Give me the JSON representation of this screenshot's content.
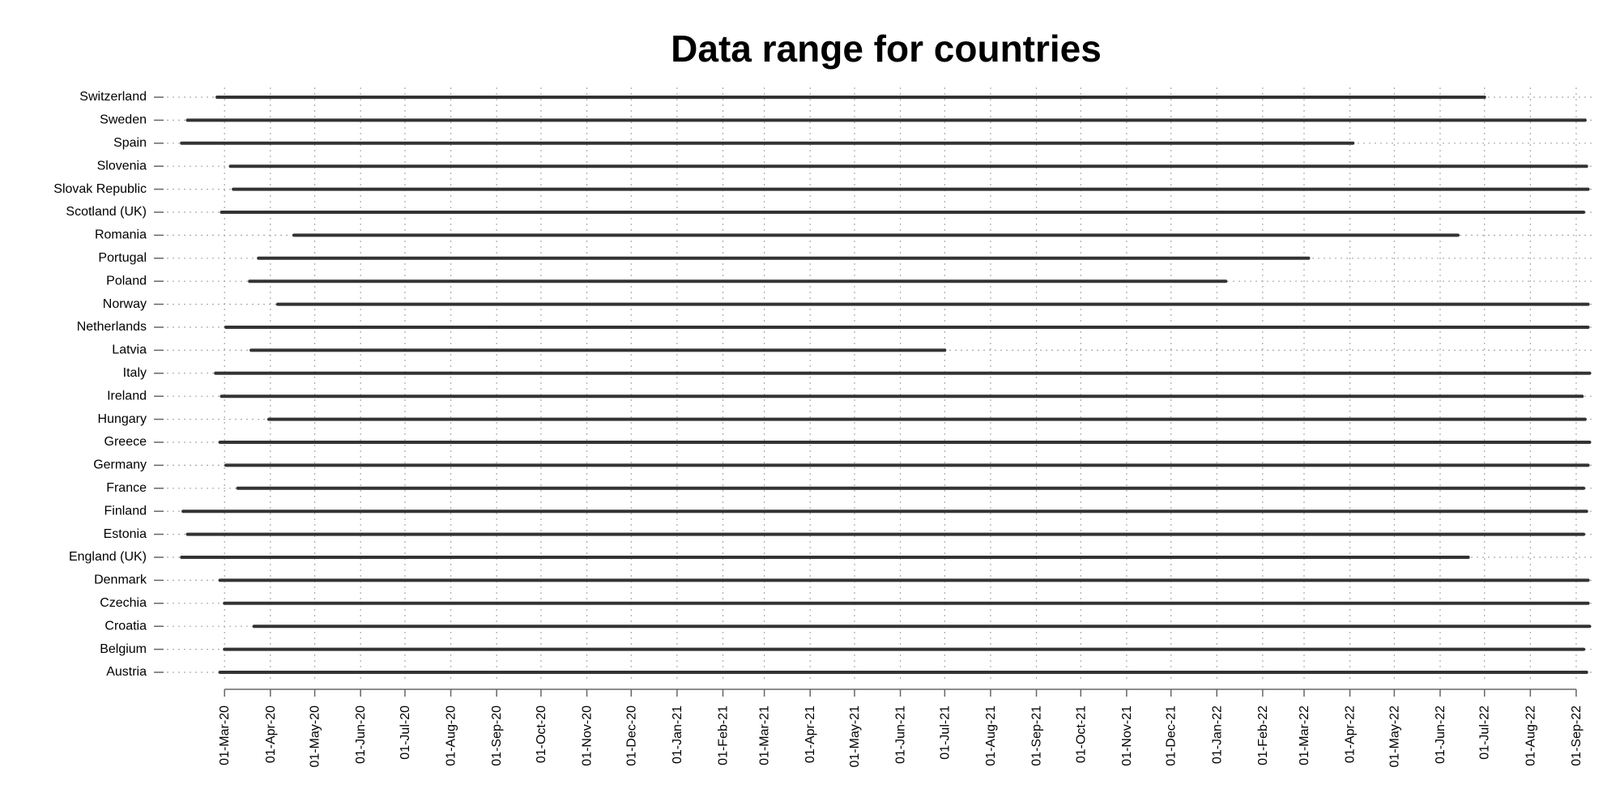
{
  "chart_data": {
    "type": "range",
    "title": "Data range for countries",
    "color": "#333333",
    "grid": true,
    "categories": [
      "Switzerland",
      "Sweden",
      "Spain",
      "Slovenia",
      "Slovak Republic",
      "Scotland (UK)",
      "Romania",
      "Portugal",
      "Poland",
      "Norway",
      "Netherlands",
      "Latvia",
      "Italy",
      "Ireland",
      "Hungary",
      "Greece",
      "Germany",
      "France",
      "Finland",
      "Estonia",
      "England (UK)",
      "Denmark",
      "Czechia",
      "Croatia",
      "Belgium",
      "Austria"
    ],
    "starts": [
      "2020-02-25",
      "2020-02-05",
      "2020-02-01",
      "2020-03-05",
      "2020-03-07",
      "2020-02-28",
      "2020-04-17",
      "2020-03-24",
      "2020-03-18",
      "2020-04-06",
      "2020-03-02",
      "2020-03-19",
      "2020-02-24",
      "2020-02-28",
      "2020-03-31",
      "2020-02-27",
      "2020-03-02",
      "2020-03-10",
      "2020-02-02",
      "2020-02-05",
      "2020-02-01",
      "2020-02-27",
      "2020-03-01",
      "2020-03-21",
      "2020-03-01",
      "2020-02-27"
    ],
    "ends": [
      "2022-07-01",
      "2022-09-07",
      "2022-04-03",
      "2022-09-08",
      "2022-09-09",
      "2022-09-06",
      "2022-06-13",
      "2022-03-04",
      "2022-01-07",
      "2022-09-09",
      "2022-09-09",
      "2021-07-01",
      "2022-09-10",
      "2022-09-05",
      "2022-09-07",
      "2022-09-10",
      "2022-09-09",
      "2022-09-06",
      "2022-09-08",
      "2022-09-06",
      "2022-06-20",
      "2022-09-09",
      "2022-09-09",
      "2022-09-10",
      "2022-09-06",
      "2022-09-08"
    ],
    "xlim": [
      "2020-01-22",
      "2022-09-12"
    ],
    "xticks": [
      {
        "value": "2020-03-01",
        "label": "01-Mar-20"
      },
      {
        "value": "2020-04-01",
        "label": "01-Apr-20"
      },
      {
        "value": "2020-05-01",
        "label": "01-May-20"
      },
      {
        "value": "2020-06-01",
        "label": "01-Jun-20"
      },
      {
        "value": "2020-07-01",
        "label": "01-Jul-20"
      },
      {
        "value": "2020-08-01",
        "label": "01-Aug-20"
      },
      {
        "value": "2020-09-01",
        "label": "01-Sep-20"
      },
      {
        "value": "2020-10-01",
        "label": "01-Oct-20"
      },
      {
        "value": "2020-11-01",
        "label": "01-Nov-20"
      },
      {
        "value": "2020-12-01",
        "label": "01-Dec-20"
      },
      {
        "value": "2021-01-01",
        "label": "01-Jan-21"
      },
      {
        "value": "2021-02-01",
        "label": "01-Feb-21"
      },
      {
        "value": "2021-03-01",
        "label": "01-Mar-21"
      },
      {
        "value": "2021-04-01",
        "label": "01-Apr-21"
      },
      {
        "value": "2021-05-01",
        "label": "01-May-21"
      },
      {
        "value": "2021-06-01",
        "label": "01-Jun-21"
      },
      {
        "value": "2021-07-01",
        "label": "01-Jul-21"
      },
      {
        "value": "2021-08-01",
        "label": "01-Aug-21"
      },
      {
        "value": "2021-09-01",
        "label": "01-Sep-21"
      },
      {
        "value": "2021-10-01",
        "label": "01-Oct-21"
      },
      {
        "value": "2021-11-01",
        "label": "01-Nov-21"
      },
      {
        "value": "2021-12-01",
        "label": "01-Dec-21"
      },
      {
        "value": "2022-01-01",
        "label": "01-Jan-22"
      },
      {
        "value": "2022-02-01",
        "label": "01-Feb-22"
      },
      {
        "value": "2022-03-01",
        "label": "01-Mar-22"
      },
      {
        "value": "2022-04-01",
        "label": "01-Apr-22"
      },
      {
        "value": "2022-05-01",
        "label": "01-May-22"
      },
      {
        "value": "2022-06-01",
        "label": "01-Jun-22"
      },
      {
        "value": "2022-07-01",
        "label": "01-Jul-22"
      },
      {
        "value": "2022-08-01",
        "label": "01-Aug-22"
      },
      {
        "value": "2022-09-01",
        "label": "01-Sep-22"
      }
    ]
  }
}
